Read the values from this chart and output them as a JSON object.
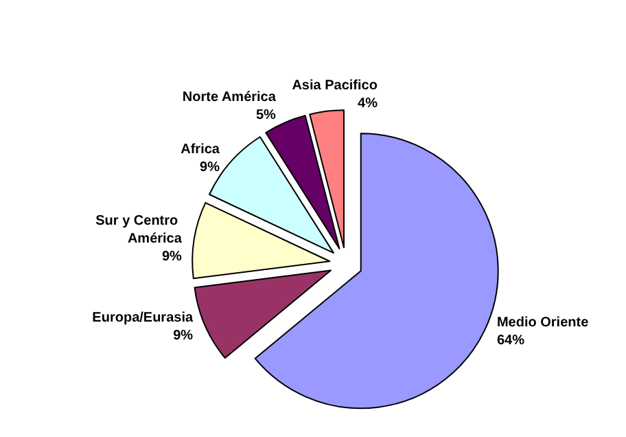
{
  "chart_data": {
    "type": "pie",
    "categories": [
      "Medio Oriente",
      "Europa/Eurasia",
      "Sur y Centro América",
      "Africa",
      "Norte América",
      "Asia Pacifico"
    ],
    "values": [
      64,
      9,
      9,
      9,
      5,
      4
    ],
    "colors": [
      "#9999ff",
      "#993366",
      "#ffffcc",
      "#ccffff",
      "#660066",
      "#ff8080"
    ],
    "value_labels": [
      "64%",
      "9%",
      "9%",
      "9%",
      "5%",
      "4%"
    ]
  }
}
